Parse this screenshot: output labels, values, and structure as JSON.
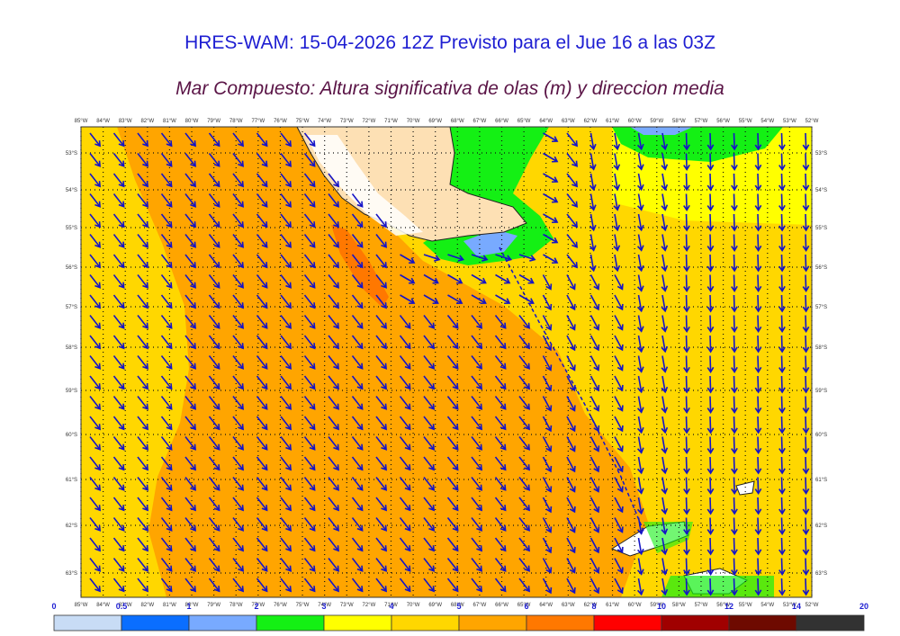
{
  "header": {
    "title": "HRES-WAM: 15-04-2026 12Z Previsto para el Jue 16 a las 03Z",
    "subtitle": "Mar Compuesto: Altura significativa de olas (m) y direccion media"
  },
  "map": {
    "lon_labels": [
      "85°W",
      "84°W",
      "83°W",
      "82°W",
      "81°W",
      "80°W",
      "79°W",
      "78°W",
      "77°W",
      "76°W",
      "75°W",
      "74°W",
      "73°W",
      "72°W",
      "71°W",
      "70°W",
      "69°W",
      "68°W",
      "67°W",
      "66°W",
      "65°W",
      "64°W",
      "63°W",
      "62°W",
      "61°W",
      "60°W",
      "59°W",
      "58°W",
      "57°W",
      "56°W",
      "55°W",
      "54°W",
      "53°W",
      "52°W"
    ],
    "lat_labels": [
      "53°S",
      "54°S",
      "55°S",
      "56°S",
      "57°S",
      "58°S",
      "59°S",
      "60°S",
      "61°S",
      "62°S",
      "63°S"
    ],
    "arrow_color": "#1414c8",
    "land_color": "#fde0b4"
  },
  "colorbar": {
    "labels": [
      "0",
      "0.5",
      "1",
      "2",
      "3",
      "4",
      "5",
      "6",
      "8",
      "10",
      "12",
      "14",
      "20"
    ],
    "colors": [
      "#c8dcf5",
      "#0a6eff",
      "#78aaff",
      "#14f014",
      "#ffff00",
      "#ffd700",
      "#ffa500",
      "#ff7800",
      "#ff0000",
      "#a00000",
      "#6e0a00",
      "#323232"
    ]
  }
}
